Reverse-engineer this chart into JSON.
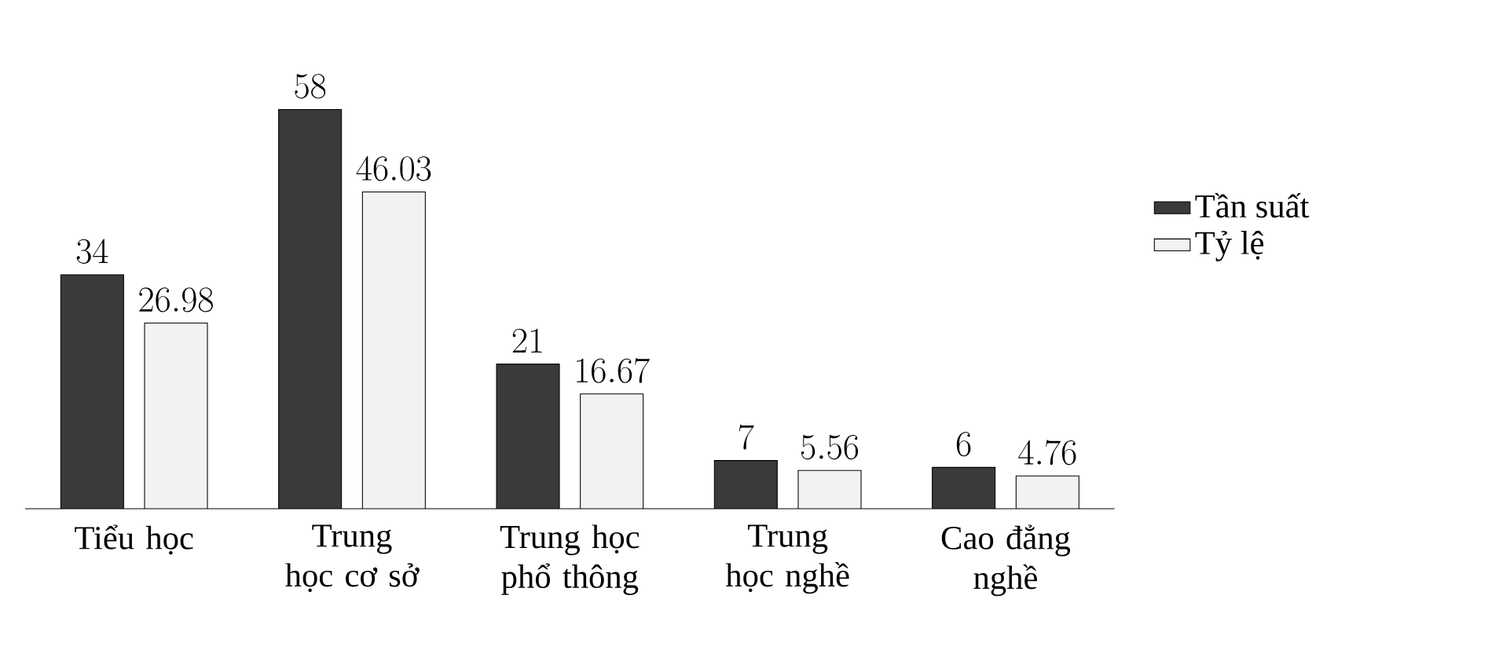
{
  "chart_data": {
    "type": "bar",
    "categories": [
      "Tiểu học",
      "Trung học cơ sở",
      "Trung học phổ thông",
      "Trung học nghề",
      "Cao đẳng nghề"
    ],
    "series": [
      {
        "name": "Tần suất",
        "color": "#3a3a3a",
        "values": [
          34,
          58,
          21,
          7,
          6
        ]
      },
      {
        "name": "Tỷ lệ",
        "color": "#f2f2f2",
        "values": [
          26.98,
          46.03,
          16.67,
          5.56,
          4.76
        ]
      }
    ],
    "data_labels": true,
    "legend": "right"
  }
}
